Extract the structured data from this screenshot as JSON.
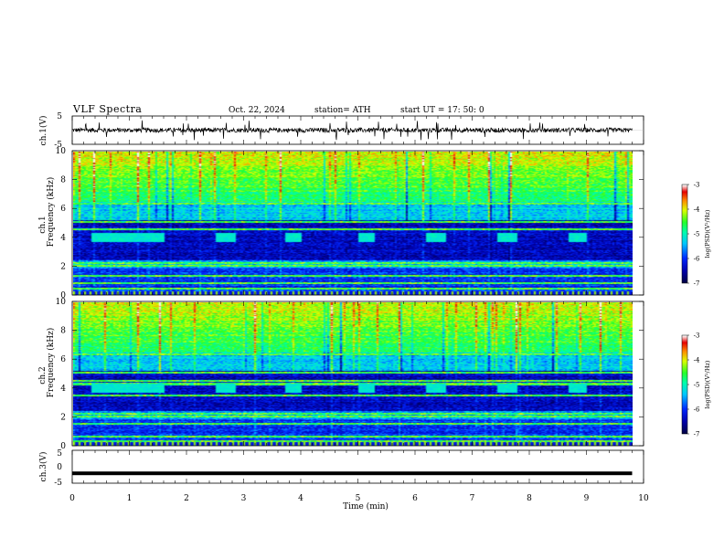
{
  "header": {
    "title": "VLF  Spectra",
    "date": "Oct. 22, 2024",
    "station": "station= ATH",
    "start": "start  UT  =    17: 50: 0"
  },
  "chart_data": [
    {
      "type": "line",
      "panel": "ch1-waveform",
      "ylabel": "ch.1(V)",
      "ylim": [
        -5,
        5
      ],
      "yticks": [
        "5",
        "-5"
      ],
      "x_range_min": [
        0,
        9.8
      ],
      "color": "#000000",
      "description_values": {
        "baseline": 0,
        "typical_amplitude": 1,
        "spike_amplitude": 3.5
      }
    },
    {
      "type": "heatmap",
      "panel": "ch1-spectrogram",
      "ylabel_top": "ch.1",
      "ylabel": "Frequency  (kHz)",
      "ylim": [
        0,
        10
      ],
      "yticks": [
        "0",
        "2",
        "4",
        "6",
        "8",
        "10"
      ],
      "colorbar": {
        "label": "log(PSD)(V²/Hz)",
        "range": [
          -7,
          -3
        ],
        "ticks": [
          "-3",
          "-4",
          "-5",
          "-6",
          "-7"
        ]
      },
      "bursts_min": [
        [
          0.3,
          1.6
        ],
        [
          2.5,
          2.85
        ],
        [
          3.7,
          4.0
        ],
        [
          5.0,
          5.3
        ],
        [
          6.2,
          6.55
        ],
        [
          7.45,
          7.8
        ],
        [
          8.7,
          9.0
        ]
      ],
      "burst_band_khz": [
        3.7,
        4.3
      ]
    },
    {
      "type": "heatmap",
      "panel": "ch2-spectrogram",
      "ylabel_top": "ch.2",
      "ylabel": "Frequency  (kHz)",
      "ylim": [
        0,
        10
      ],
      "yticks": [
        "0",
        "2",
        "4",
        "6",
        "8",
        "10"
      ],
      "colorbar": {
        "label": "log(PSD)(V²/Hz)",
        "range": [
          -7,
          -3
        ],
        "ticks": [
          "-3",
          "-4",
          "-5",
          "-6",
          "-7"
        ]
      },
      "bursts_min": [
        [
          0.3,
          1.6
        ],
        [
          2.5,
          2.85
        ],
        [
          3.7,
          4.0
        ],
        [
          5.0,
          5.3
        ],
        [
          6.2,
          6.55
        ],
        [
          7.45,
          7.8
        ],
        [
          8.7,
          9.0
        ]
      ],
      "burst_band_khz": [
        3.7,
        4.3
      ]
    },
    {
      "type": "line",
      "panel": "ch3-waveform",
      "ylabel": "ch.3(V)",
      "ylim": [
        -5,
        5
      ],
      "yticks": [
        "5",
        "0",
        "-5"
      ],
      "x_range_min": [
        0,
        9.8
      ],
      "values_constant": -2,
      "color": "#000000"
    }
  ],
  "xaxis": {
    "label": "Time  (min)",
    "ticks": [
      "0",
      "1",
      "2",
      "3",
      "4",
      "5",
      "6",
      "7",
      "8",
      "9",
      "10"
    ],
    "range": [
      0,
      10
    ]
  }
}
